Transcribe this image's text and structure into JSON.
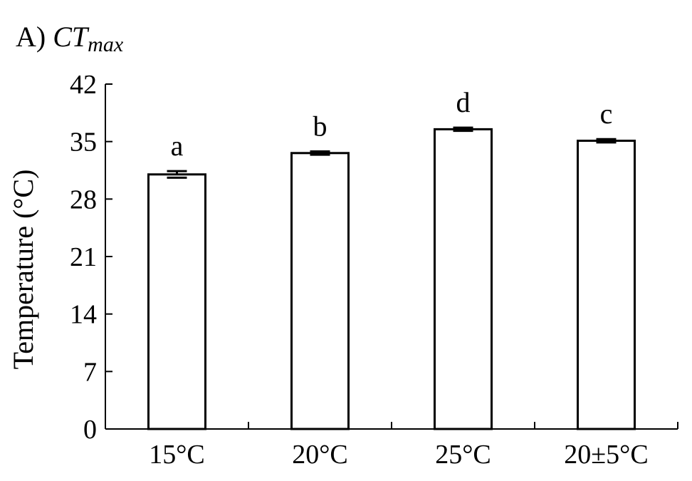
{
  "chart_data": {
    "type": "bar",
    "title_prefix": "A) ",
    "title_main": "CT",
    "title_sub": "max",
    "xlabel": "",
    "ylabel": "Temperature (°C)",
    "ylim": [
      0,
      42
    ],
    "yticks": [
      0,
      7,
      14,
      21,
      28,
      35,
      42
    ],
    "categories": [
      "15°C",
      "20°C",
      "25°C",
      "20±5°C"
    ],
    "values": [
      31.0,
      33.6,
      36.5,
      35.1
    ],
    "errors": [
      0.4,
      0.2,
      0.2,
      0.2
    ],
    "significance": [
      "a",
      "b",
      "d",
      "c"
    ],
    "grid": false,
    "bar_color": "#ffffff",
    "edge_color": "#000000"
  }
}
